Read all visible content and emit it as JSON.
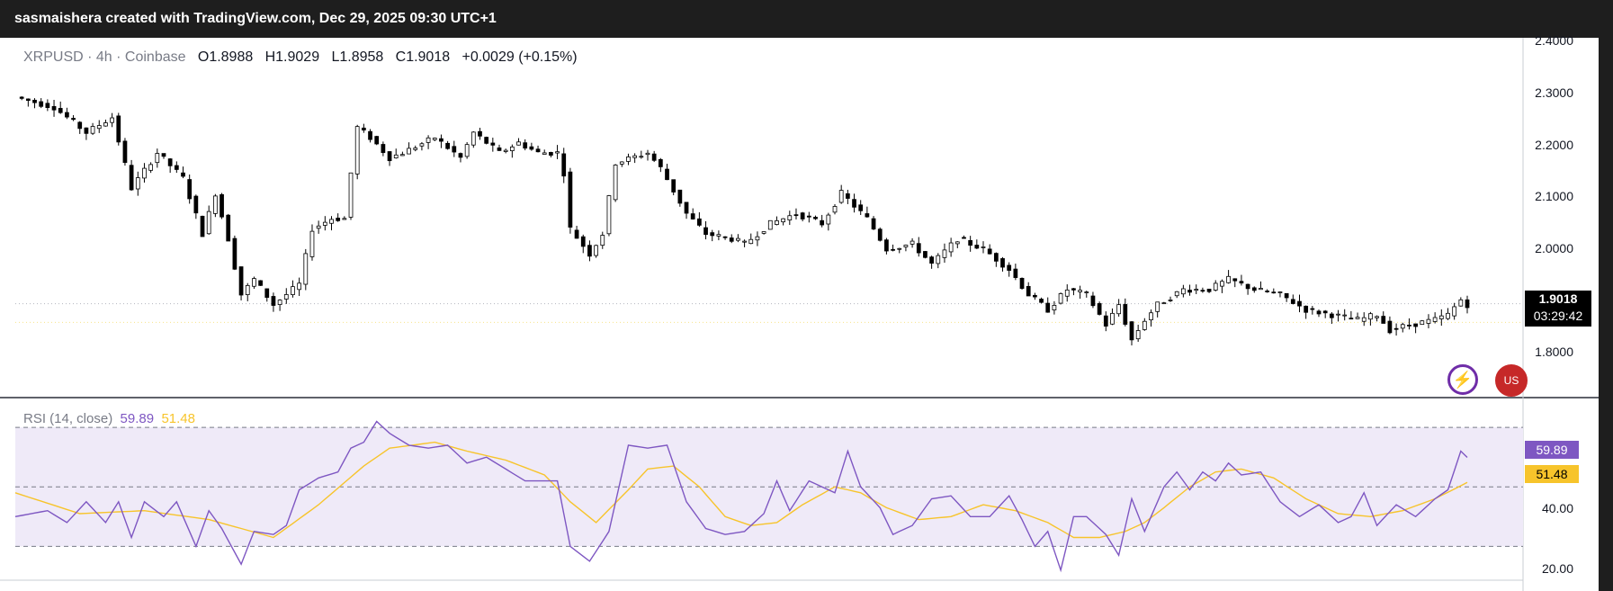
{
  "header": {
    "text": "sasmaishera created with TradingView.com, Dec 29, 2025 09:30 UTC+1"
  },
  "legend": {
    "symbol": "XRPUSD · 4h · Coinbase",
    "o_label": "O",
    "o_value": "1.8988",
    "h_label": "H",
    "h_value": "1.9029",
    "l_label": "L",
    "l_value": "1.8958",
    "c_label": "C",
    "c_value": "1.9018",
    "change": "+0.0029 (+0.15%)"
  },
  "price_axis": [
    "2.4000",
    "2.3000",
    "2.2000",
    "2.1000",
    "2.0000",
    "1.8000"
  ],
  "last_price": {
    "value": "1.9018",
    "countdown": "03:29:42"
  },
  "rsi": {
    "label": "RSI (14, close)",
    "value": "59.89",
    "ma_value": "51.48",
    "axis": [
      "40.00",
      "20.00"
    ]
  },
  "icons": [
    "lightning-spark-icon",
    "us-flag-icon"
  ],
  "colors": {
    "rsi_line": "#7e57c2",
    "rsi_ma": "#f7c42b",
    "band": "#efeaf8",
    "candle": "#000000"
  },
  "chart_data": [
    {
      "type": "candlestick",
      "symbol": "XRPUSD",
      "interval": "4h",
      "exchange": "Coinbase",
      "ylim": [
        1.72,
        2.42
      ],
      "y_ticks": [
        2.4,
        2.3,
        2.2,
        2.1,
        2.0,
        1.8
      ],
      "price_line": 1.9018,
      "anchors": [
        [
          0,
          2.31
        ],
        [
          6,
          2.29
        ],
        [
          11,
          2.24
        ],
        [
          15,
          2.27
        ],
        [
          18,
          2.13
        ],
        [
          22,
          2.2
        ],
        [
          26,
          2.15
        ],
        [
          29,
          2.04
        ],
        [
          31,
          2.12
        ],
        [
          33,
          2.03
        ],
        [
          35,
          1.92
        ],
        [
          37,
          1.95
        ],
        [
          40,
          1.9
        ],
        [
          44,
          1.94
        ],
        [
          46,
          2.05
        ],
        [
          49,
          2.07
        ],
        [
          51,
          2.07
        ],
        [
          53,
          2.25
        ],
        [
          55,
          2.23
        ],
        [
          58,
          2.19
        ],
        [
          60,
          2.2
        ],
        [
          65,
          2.23
        ],
        [
          69,
          2.19
        ],
        [
          71,
          2.24
        ],
        [
          75,
          2.2
        ],
        [
          78,
          2.22
        ],
        [
          81,
          2.2
        ],
        [
          84,
          2.2
        ],
        [
          85,
          2.16
        ],
        [
          86,
          2.05
        ],
        [
          89,
          2.0
        ],
        [
          91,
          2.04
        ],
        [
          93,
          2.18
        ],
        [
          98,
          2.2
        ],
        [
          100,
          2.17
        ],
        [
          104,
          2.08
        ],
        [
          107,
          2.04
        ],
        [
          111,
          2.03
        ],
        [
          113,
          2.02
        ],
        [
          117,
          2.06
        ],
        [
          121,
          2.08
        ],
        [
          125,
          2.06
        ],
        [
          128,
          2.12
        ],
        [
          132,
          2.07
        ],
        [
          135,
          2.01
        ],
        [
          139,
          2.02
        ],
        [
          142,
          1.98
        ],
        [
          146,
          2.03
        ],
        [
          150,
          2.01
        ],
        [
          154,
          1.97
        ],
        [
          157,
          1.92
        ],
        [
          160,
          1.89
        ],
        [
          163,
          1.93
        ],
        [
          166,
          1.92
        ],
        [
          169,
          1.86
        ],
        [
          171,
          1.9
        ],
        [
          173,
          1.83
        ],
        [
          175,
          1.87
        ],
        [
          177,
          1.9
        ],
        [
          181,
          1.93
        ],
        [
          185,
          1.93
        ],
        [
          188,
          1.95
        ],
        [
          192,
          1.93
        ],
        [
          196,
          1.92
        ],
        [
          200,
          1.89
        ],
        [
          204,
          1.88
        ],
        [
          208,
          1.87
        ],
        [
          211,
          1.88
        ],
        [
          213,
          1.85
        ],
        [
          216,
          1.86
        ],
        [
          220,
          1.87
        ],
        [
          222,
          1.88
        ],
        [
          224,
          1.91
        ],
        [
          225,
          1.9
        ]
      ]
    },
    {
      "type": "line",
      "title": "RSI (14, close)",
      "ylim": [
        15,
        80
      ],
      "y_ticks": [
        40,
        20
      ],
      "bands": [
        30,
        50,
        70
      ],
      "series": [
        {
          "name": "RSI",
          "anchors": [
            [
              0,
              40
            ],
            [
              5,
              42
            ],
            [
              8,
              38
            ],
            [
              11,
              45
            ],
            [
              14,
              38
            ],
            [
              16,
              45
            ],
            [
              18,
              33
            ],
            [
              20,
              45
            ],
            [
              23,
              40
            ],
            [
              25,
              45
            ],
            [
              28,
              30
            ],
            [
              30,
              42
            ],
            [
              32,
              36
            ],
            [
              35,
              24
            ],
            [
              37,
              35
            ],
            [
              40,
              34
            ],
            [
              42,
              37
            ],
            [
              44,
              49
            ],
            [
              47,
              53
            ],
            [
              50,
              55
            ],
            [
              52,
              63
            ],
            [
              54,
              65
            ],
            [
              56,
              72
            ],
            [
              58,
              68
            ],
            [
              61,
              64
            ],
            [
              64,
              63
            ],
            [
              67,
              64
            ],
            [
              70,
              58
            ],
            [
              73,
              60
            ],
            [
              76,
              56
            ],
            [
              79,
              52
            ],
            [
              82,
              52
            ],
            [
              84,
              52
            ],
            [
              86,
              30
            ],
            [
              89,
              25
            ],
            [
              92,
              35
            ],
            [
              95,
              64
            ],
            [
              98,
              63
            ],
            [
              101,
              64
            ],
            [
              104,
              45
            ],
            [
              107,
              36
            ],
            [
              110,
              34
            ],
            [
              113,
              35
            ],
            [
              116,
              41
            ],
            [
              118,
              52
            ],
            [
              120,
              42
            ],
            [
              123,
              52
            ],
            [
              127,
              48
            ],
            [
              129,
              62
            ],
            [
              131,
              50
            ],
            [
              134,
              43
            ],
            [
              136,
              34
            ],
            [
              139,
              37
            ],
            [
              142,
              46
            ],
            [
              145,
              47
            ],
            [
              148,
              40
            ],
            [
              151,
              40
            ],
            [
              154,
              47
            ],
            [
              156,
              39
            ],
            [
              158,
              30
            ],
            [
              160,
              35
            ],
            [
              162,
              22
            ],
            [
              164,
              40
            ],
            [
              166,
              40
            ],
            [
              169,
              34
            ],
            [
              171,
              27
            ],
            [
              173,
              46
            ],
            [
              175,
              35
            ],
            [
              178,
              50
            ],
            [
              180,
              55
            ],
            [
              182,
              49
            ],
            [
              184,
              55
            ],
            [
              186,
              52
            ],
            [
              188,
              58
            ],
            [
              190,
              54
            ],
            [
              193,
              55
            ],
            [
              196,
              45
            ],
            [
              199,
              40
            ],
            [
              202,
              44
            ],
            [
              205,
              38
            ],
            [
              207,
              40
            ],
            [
              209,
              48
            ],
            [
              211,
              37
            ],
            [
              214,
              44
            ],
            [
              217,
              40
            ],
            [
              220,
              46
            ],
            [
              222,
              49
            ],
            [
              224,
              62
            ],
            [
              225,
              59.89
            ]
          ]
        },
        {
          "name": "RSI-based MA",
          "anchors": [
            [
              0,
              48
            ],
            [
              10,
              41
            ],
            [
              20,
              42
            ],
            [
              30,
              39
            ],
            [
              40,
              33
            ],
            [
              47,
              44
            ],
            [
              54,
              57
            ],
            [
              58,
              63
            ],
            [
              65,
              65
            ],
            [
              70,
              62
            ],
            [
              76,
              59
            ],
            [
              82,
              54
            ],
            [
              86,
              45
            ],
            [
              90,
              38
            ],
            [
              95,
              49
            ],
            [
              98,
              56
            ],
            [
              102,
              57
            ],
            [
              106,
              50
            ],
            [
              110,
              40
            ],
            [
              114,
              37
            ],
            [
              118,
              38
            ],
            [
              122,
              44
            ],
            [
              127,
              50
            ],
            [
              131,
              48
            ],
            [
              135,
              43
            ],
            [
              140,
              39
            ],
            [
              145,
              40
            ],
            [
              150,
              44
            ],
            [
              155,
              42
            ],
            [
              160,
              38
            ],
            [
              164,
              33
            ],
            [
              168,
              33
            ],
            [
              172,
              35
            ],
            [
              175,
              38
            ],
            [
              178,
              43
            ],
            [
              182,
              50
            ],
            [
              186,
              55
            ],
            [
              190,
              56
            ],
            [
              195,
              53
            ],
            [
              200,
              46
            ],
            [
              205,
              41
            ],
            [
              210,
              40
            ],
            [
              215,
              42
            ],
            [
              220,
              46
            ],
            [
              225,
              51.48
            ]
          ]
        }
      ]
    }
  ]
}
